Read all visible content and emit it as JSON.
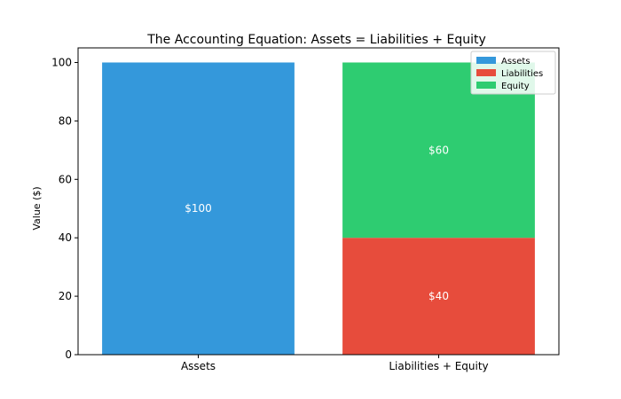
{
  "chart_data": {
    "type": "bar",
    "stacked": true,
    "title": "The Accounting Equation: Assets = Liabilities + Equity",
    "xlabel": "",
    "ylabel": "Value ($)",
    "ylim": [
      0,
      105
    ],
    "yticks": [
      0,
      20,
      40,
      60,
      80,
      100
    ],
    "categories": [
      "Assets",
      "Liabilities + Equity"
    ],
    "series": [
      {
        "name": "Assets",
        "color": "#3498db",
        "values": [
          100,
          0
        ],
        "labels": [
          "$100",
          ""
        ]
      },
      {
        "name": "Liabilities",
        "color": "#e74c3c",
        "values": [
          0,
          40
        ],
        "labels": [
          "",
          "$40"
        ]
      },
      {
        "name": "Equity",
        "color": "#2ecc71",
        "values": [
          0,
          60
        ],
        "labels": [
          "",
          "$60"
        ]
      }
    ],
    "legend_position": "top-right",
    "grid": false
  }
}
